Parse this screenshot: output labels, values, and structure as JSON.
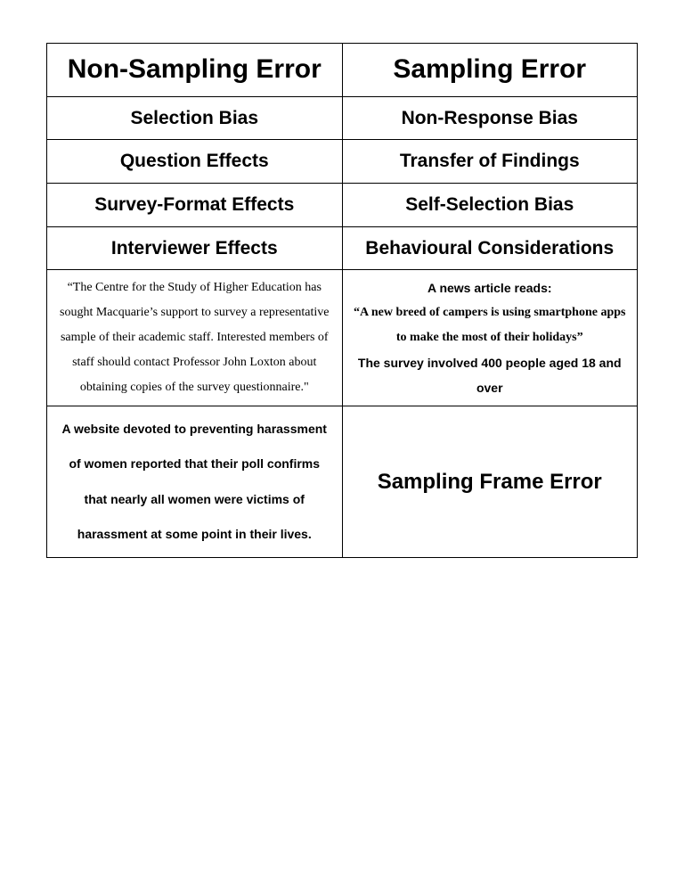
{
  "row1": {
    "left": "Non-Sampling Error",
    "right": "Sampling Error"
  },
  "row2": {
    "left": "Selection Bias",
    "right": "Non-Response Bias"
  },
  "row3": {
    "left": "Question Effects",
    "right": "Transfer of Findings"
  },
  "row4": {
    "left": "Survey-Format Effects",
    "right": "Self-Selection Bias"
  },
  "row5": {
    "left": "Interviewer Effects",
    "right": "Behavioural Considerations"
  },
  "row6": {
    "left": "“The Centre for the Study of Higher Education has sought Macquarie’s support to survey a representative sample of their academic staff. Interested members of staff should contact Professor John Loxton about obtaining copies of the survey questionnaire.\"",
    "right_lead": "A news article reads:",
    "right_quote": "“A new breed of campers is using smartphone apps to make the most of their holidays”",
    "right_tail": "The survey involved 400 people aged 18 and over"
  },
  "row7": {
    "left": "A website devoted to preventing harassment of women reported that their poll confirms that nearly all women were victims of harassment at some point in their lives.",
    "right": "Sampling Frame Error"
  }
}
